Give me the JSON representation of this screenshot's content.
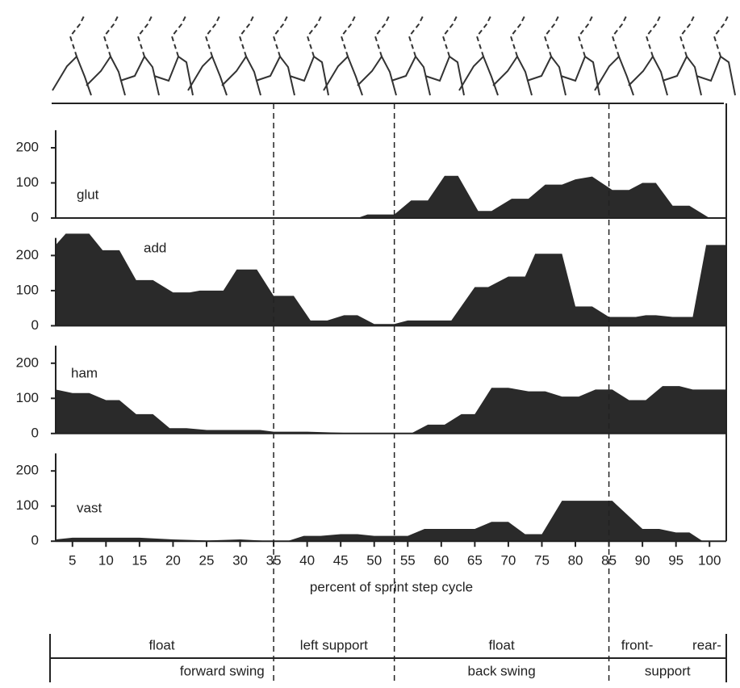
{
  "chart_data": {
    "type": "area",
    "color": "#2a2a2a",
    "xlabel": "percent of sprint step cycle",
    "xlim": [
      2.5,
      102.5
    ],
    "xticks": [
      5,
      10,
      15,
      20,
      25,
      30,
      35,
      40,
      45,
      50,
      55,
      60,
      65,
      70,
      75,
      80,
      85,
      90,
      95,
      100
    ],
    "ylim": [
      0,
      250
    ],
    "yticks": [
      0,
      100,
      200
    ],
    "phase_lines": [
      35,
      53,
      85
    ],
    "phases_top": [
      "float",
      "left support",
      "float",
      "front-",
      "rear-"
    ],
    "phases_bottom": [
      "forward swing",
      "back swing",
      "support"
    ],
    "series": [
      {
        "name": "glut",
        "x": [
          2.5,
          47.5,
          49,
          53,
          55.5,
          58,
          60.5,
          62.5,
          65.5,
          67.5,
          70.5,
          73,
          75.5,
          78,
          80,
          82.5,
          85.5,
          88,
          90,
          92,
          94.5,
          97,
          100,
          102.5
        ],
        "values": [
          0,
          0,
          10,
          10,
          50,
          50,
          120,
          120,
          20,
          20,
          55,
          55,
          95,
          95,
          110,
          118,
          80,
          80,
          100,
          100,
          35,
          35,
          0,
          0
        ]
      },
      {
        "name": "add",
        "x": [
          2.5,
          4,
          7.5,
          9.5,
          12,
          14.5,
          17,
          20,
          22.5,
          24,
          27.5,
          29.5,
          32.5,
          35,
          38,
          40.5,
          43,
          45.5,
          47.5,
          50,
          53,
          55,
          61.5,
          65,
          67,
          70,
          72.5,
          74,
          78,
          80,
          82.5,
          85,
          89,
          90.5,
          92,
          94.5,
          97.5,
          99.5,
          102.5
        ],
        "values": [
          230,
          262,
          262,
          215,
          215,
          130,
          130,
          95,
          95,
          100,
          100,
          160,
          160,
          85,
          85,
          15,
          15,
          30,
          30,
          5,
          5,
          15,
          15,
          110,
          110,
          140,
          140,
          205,
          205,
          55,
          55,
          25,
          25,
          30,
          30,
          25,
          25,
          230,
          230
        ]
      },
      {
        "name": "ham",
        "x": [
          2.5,
          5,
          7.5,
          10,
          12,
          14.5,
          17,
          19.5,
          22,
          25,
          33,
          35,
          40,
          45,
          48,
          55.5,
          58,
          60.5,
          63,
          65,
          67.5,
          70,
          73,
          75.5,
          78,
          80.5,
          83,
          85.5,
          88,
          90.5,
          93,
          95.5,
          97.5,
          102.5
        ],
        "values": [
          125,
          115,
          115,
          95,
          95,
          55,
          55,
          15,
          15,
          10,
          10,
          5,
          5,
          2,
          0,
          0,
          25,
          25,
          55,
          55,
          130,
          130,
          120,
          120,
          105,
          105,
          125,
          125,
          95,
          95,
          135,
          135,
          125,
          125
        ]
      },
      {
        "name": "vast",
        "x": [
          2.5,
          5,
          15,
          20,
          25,
          30,
          35,
          37,
          39.5,
          42,
          45,
          47.5,
          50,
          55,
          57.5,
          65,
          67.5,
          70,
          72.5,
          75,
          78,
          85.5,
          90,
          92.5,
          95,
          97,
          99,
          102.5
        ],
        "values": [
          5,
          10,
          10,
          5,
          2,
          5,
          0,
          0,
          15,
          15,
          20,
          20,
          15,
          15,
          35,
          35,
          55,
          55,
          20,
          20,
          115,
          115,
          35,
          35,
          25,
          25,
          0,
          0
        ]
      }
    ]
  }
}
